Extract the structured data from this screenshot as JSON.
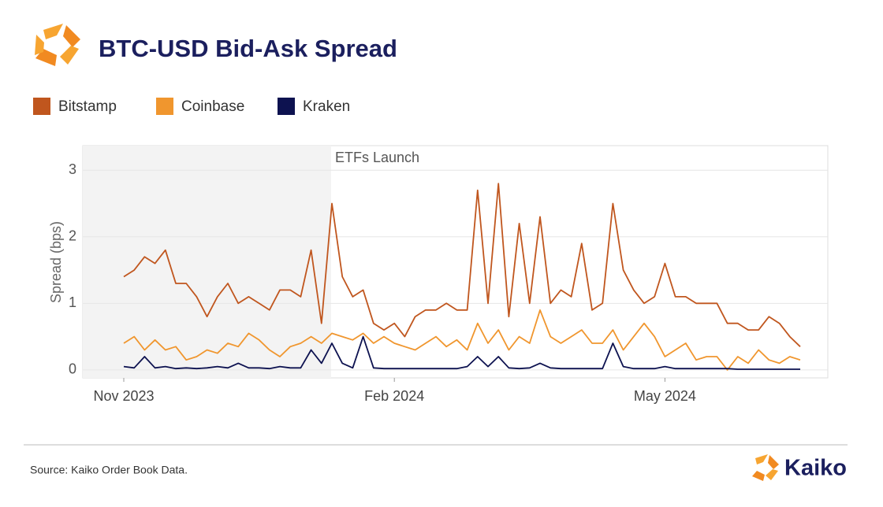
{
  "chart_data": {
    "type": "line",
    "title": "BTC-USD Bid-Ask Spread",
    "y_label": "Spread (bps)",
    "annotation": "ETFs Launch",
    "source": "Source: Kaiko Order Book Data.",
    "brand": "Kaiko",
    "categories": [
      "Nov 2023",
      null,
      null,
      null,
      null,
      null,
      null,
      null,
      null,
      null,
      null,
      null,
      null,
      null,
      null,
      null,
      null,
      null,
      null,
      null,
      null,
      null,
      null,
      null,
      null,
      null,
      "Feb 2024",
      null,
      null,
      null,
      null,
      null,
      null,
      null,
      null,
      null,
      null,
      null,
      null,
      null,
      null,
      null,
      null,
      null,
      null,
      null,
      null,
      null,
      null,
      null,
      null,
      null,
      "May 2024",
      null,
      null,
      null,
      null,
      null,
      null,
      null,
      null,
      null,
      null,
      null,
      null,
      null
    ],
    "series": [
      {
        "name": "Bitstamp",
        "color": "#c0561e",
        "values": [
          1.4,
          1.5,
          1.7,
          1.6,
          1.8,
          1.3,
          1.3,
          1.1,
          0.8,
          1.1,
          1.3,
          1.0,
          1.1,
          1.0,
          0.9,
          1.2,
          1.2,
          1.1,
          1.8,
          0.7,
          2.5,
          1.4,
          1.1,
          1.2,
          0.7,
          0.6,
          0.7,
          0.5,
          0.8,
          0.9,
          0.9,
          1.0,
          0.9,
          0.9,
          2.7,
          1.0,
          2.8,
          0.8,
          2.2,
          1.0,
          2.3,
          1.0,
          1.2,
          1.1,
          1.9,
          0.9,
          1.0,
          2.5,
          1.5,
          1.2,
          1.0,
          1.1,
          1.6,
          1.1,
          1.1,
          1.0,
          1.0,
          1.0,
          0.7,
          0.7,
          0.6,
          0.6,
          0.8,
          0.7,
          0.5,
          0.35
        ]
      },
      {
        "name": "Coinbase",
        "color": "#f0962e",
        "values": [
          0.4,
          0.5,
          0.3,
          0.45,
          0.3,
          0.35,
          0.15,
          0.2,
          0.3,
          0.25,
          0.4,
          0.35,
          0.55,
          0.45,
          0.3,
          0.2,
          0.35,
          0.4,
          0.5,
          0.4,
          0.55,
          0.5,
          0.45,
          0.55,
          0.4,
          0.5,
          0.4,
          0.35,
          0.3,
          0.4,
          0.5,
          0.35,
          0.45,
          0.3,
          0.7,
          0.4,
          0.6,
          0.3,
          0.5,
          0.4,
          0.9,
          0.5,
          0.4,
          0.5,
          0.6,
          0.4,
          0.4,
          0.6,
          0.3,
          0.5,
          0.7,
          0.5,
          0.2,
          0.3,
          0.4,
          0.15,
          0.2,
          0.2,
          0.0,
          0.2,
          0.1,
          0.3,
          0.15,
          0.1,
          0.2,
          0.15
        ]
      },
      {
        "name": "Kraken",
        "color": "#0d1250",
        "values": [
          0.05,
          0.03,
          0.2,
          0.03,
          0.05,
          0.02,
          0.03,
          0.02,
          0.03,
          0.05,
          0.03,
          0.1,
          0.03,
          0.03,
          0.02,
          0.05,
          0.03,
          0.03,
          0.3,
          0.1,
          0.4,
          0.1,
          0.03,
          0.5,
          0.03,
          0.02,
          0.02,
          0.02,
          0.02,
          0.02,
          0.02,
          0.02,
          0.02,
          0.05,
          0.2,
          0.05,
          0.2,
          0.03,
          0.02,
          0.03,
          0.1,
          0.03,
          0.02,
          0.02,
          0.02,
          0.02,
          0.02,
          0.4,
          0.05,
          0.02,
          0.02,
          0.02,
          0.05,
          0.02,
          0.02,
          0.02,
          0.02,
          0.02,
          0.02,
          0.01,
          0.01,
          0.01,
          0.01,
          0.01,
          0.01,
          0.01
        ]
      }
    ],
    "ylim": [
      -0.12,
      3.37
    ],
    "yticks": [
      0,
      1,
      2,
      3
    ],
    "grid": true
  }
}
